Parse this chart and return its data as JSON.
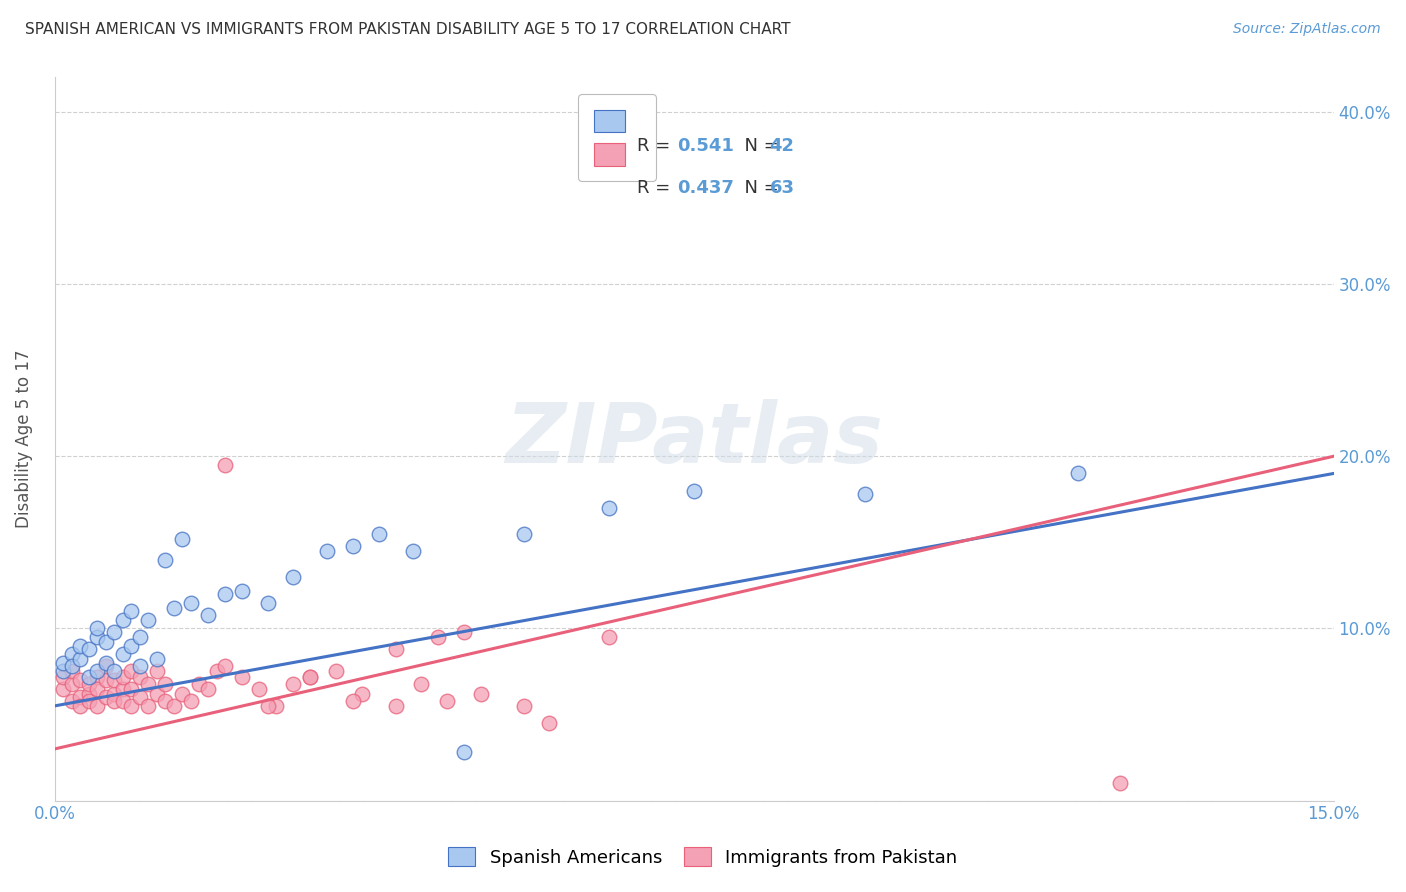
{
  "title": "SPANISH AMERICAN VS IMMIGRANTS FROM PAKISTAN DISABILITY AGE 5 TO 17 CORRELATION CHART",
  "source": "Source: ZipAtlas.com",
  "ylabel": "Disability Age 5 to 17",
  "xlim": [
    0.0,
    0.15
  ],
  "ylim": [
    0.0,
    0.42
  ],
  "background_color": "#ffffff",
  "grid_color": "#d0d0d0",
  "watermark_text": "ZIPatlas",
  "legend_R1": "0.541",
  "legend_N1": "42",
  "legend_R2": "0.437",
  "legend_N2": "63",
  "color_blue": "#a8c8f0",
  "color_pink": "#f4a0b5",
  "line_color_blue": "#4472c4",
  "line_color_pink": "#e8607a",
  "label1": "Spanish Americans",
  "label2": "Immigrants from Pakistan",
  "blue_x": [
    0.001,
    0.001,
    0.002,
    0.002,
    0.003,
    0.003,
    0.004,
    0.004,
    0.005,
    0.005,
    0.005,
    0.006,
    0.006,
    0.007,
    0.007,
    0.008,
    0.008,
    0.009,
    0.009,
    0.01,
    0.01,
    0.011,
    0.012,
    0.013,
    0.014,
    0.015,
    0.016,
    0.018,
    0.02,
    0.022,
    0.025,
    0.028,
    0.032,
    0.035,
    0.038,
    0.042,
    0.048,
    0.055,
    0.065,
    0.075,
    0.095,
    0.12
  ],
  "blue_y": [
    0.075,
    0.08,
    0.085,
    0.078,
    0.082,
    0.09,
    0.072,
    0.088,
    0.075,
    0.095,
    0.1,
    0.08,
    0.092,
    0.075,
    0.098,
    0.105,
    0.085,
    0.11,
    0.09,
    0.078,
    0.095,
    0.105,
    0.082,
    0.14,
    0.112,
    0.152,
    0.115,
    0.108,
    0.12,
    0.122,
    0.115,
    0.13,
    0.145,
    0.148,
    0.155,
    0.145,
    0.028,
    0.155,
    0.17,
    0.18,
    0.178,
    0.19
  ],
  "pink_x": [
    0.001,
    0.001,
    0.002,
    0.002,
    0.002,
    0.003,
    0.003,
    0.003,
    0.004,
    0.004,
    0.004,
    0.005,
    0.005,
    0.005,
    0.006,
    0.006,
    0.006,
    0.007,
    0.007,
    0.007,
    0.008,
    0.008,
    0.008,
    0.009,
    0.009,
    0.009,
    0.01,
    0.01,
    0.011,
    0.011,
    0.012,
    0.012,
    0.013,
    0.013,
    0.014,
    0.015,
    0.016,
    0.017,
    0.018,
    0.019,
    0.02,
    0.022,
    0.024,
    0.026,
    0.028,
    0.03,
    0.033,
    0.036,
    0.04,
    0.043,
    0.046,
    0.05,
    0.055,
    0.058,
    0.045,
    0.04,
    0.035,
    0.03,
    0.025,
    0.02,
    0.065,
    0.048,
    0.125
  ],
  "pink_y": [
    0.065,
    0.072,
    0.068,
    0.058,
    0.075,
    0.06,
    0.07,
    0.055,
    0.062,
    0.068,
    0.058,
    0.072,
    0.065,
    0.055,
    0.06,
    0.07,
    0.078,
    0.062,
    0.07,
    0.058,
    0.065,
    0.058,
    0.072,
    0.055,
    0.065,
    0.075,
    0.06,
    0.072,
    0.055,
    0.068,
    0.062,
    0.075,
    0.058,
    0.068,
    0.055,
    0.062,
    0.058,
    0.068,
    0.065,
    0.075,
    0.078,
    0.072,
    0.065,
    0.055,
    0.068,
    0.072,
    0.075,
    0.062,
    0.055,
    0.068,
    0.058,
    0.062,
    0.055,
    0.045,
    0.095,
    0.088,
    0.058,
    0.072,
    0.055,
    0.195,
    0.095,
    0.098,
    0.01
  ],
  "blue_line_x": [
    0.0,
    0.15
  ],
  "blue_line_y": [
    0.055,
    0.19
  ],
  "pink_line_x": [
    0.0,
    0.15
  ],
  "pink_line_y": [
    0.03,
    0.2
  ]
}
